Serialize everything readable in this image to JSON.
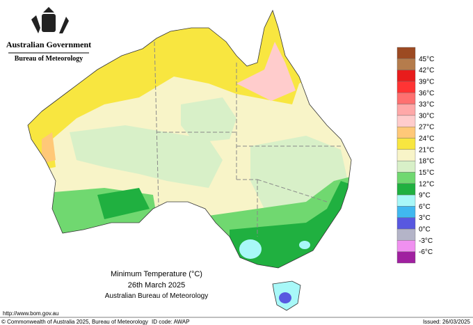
{
  "header": {
    "government": "Australian Government",
    "agency": "Bureau of Meteorology"
  },
  "legend": {
    "labels": [
      "45°C",
      "42°C",
      "39°C",
      "36°C",
      "33°C",
      "30°C",
      "27°C",
      "24°C",
      "21°C",
      "18°C",
      "15°C",
      "12°C",
      "9°C",
      "6°C",
      "3°C",
      "0°C",
      "-3°C",
      "-6°C"
    ],
    "colors": [
      "#9c4a22",
      "#b57c4c",
      "#e81c1c",
      "#ff3434",
      "#ff7070",
      "#ffa8a8",
      "#ffcccc",
      "#ffc878",
      "#f8e640",
      "#f8f4c8",
      "#d8f0c8",
      "#70d870",
      "#20b040",
      "#a8f8f8",
      "#40b8f0",
      "#5858e0",
      "#b4b4c8",
      "#f090f0",
      "#a020a0"
    ]
  },
  "title": {
    "line1": "Minimum Temperature (°C)",
    "line2": "26th March 2025",
    "line3": "Australian Bureau of Meteorology"
  },
  "footer": {
    "url": "http://www.bom.gov.au",
    "copyright": "© Commonwealth of Australia 2025, Bureau of Meteorology",
    "id": "ID code: AWAP",
    "issued": "Issued: 26/03/2025"
  }
}
